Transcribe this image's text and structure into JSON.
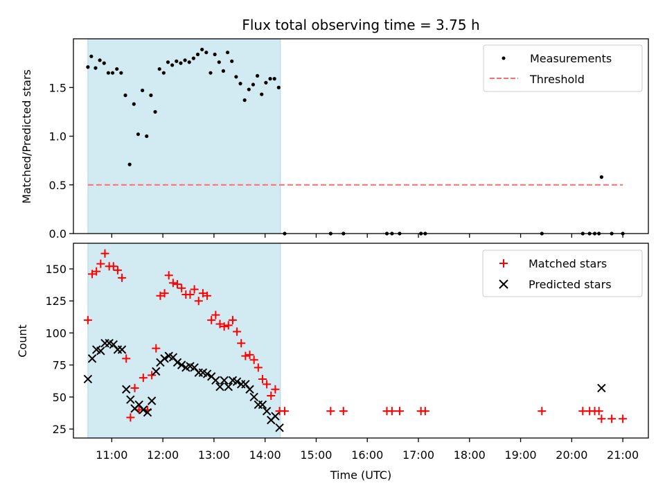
{
  "chart_data": [
    {
      "type": "scatter",
      "title": "Flux total observing time = 3.75 h",
      "xlabel": "",
      "ylabel": "Matched/Predicted stars",
      "xlim": [
        "10:15",
        "21:30"
      ],
      "ylim": [
        0,
        2.0
      ],
      "yticks": [
        0.0,
        0.5,
        1.0,
        1.5
      ],
      "ytick_labels": [
        "0.0",
        "0.5",
        "1.0",
        "1.5"
      ],
      "shaded_region": {
        "x_start": "10:32",
        "x_end": "14:18",
        "color": "#add8e6"
      },
      "legend": {
        "placement": "upper right",
        "entries": [
          "Measurements",
          "Threshold"
        ]
      },
      "threshold": {
        "name": "Threshold",
        "y": 0.5,
        "x_range": [
          "10:32",
          "21:00"
        ],
        "color": "#ff6b6b",
        "style": "dashed"
      },
      "series": [
        {
          "name": "Measurements",
          "marker": "dot",
          "color": "#000000",
          "points": [
            [
              "10:32",
              1.71
            ],
            [
              "10:36",
              1.82
            ],
            [
              "10:41",
              1.7
            ],
            [
              "10:46",
              1.78
            ],
            [
              "10:51",
              1.75
            ],
            [
              "10:56",
              1.65
            ],
            [
              "11:01",
              1.65
            ],
            [
              "11:06",
              1.69
            ],
            [
              "11:11",
              1.65
            ],
            [
              "11:16",
              1.42
            ],
            [
              "11:21",
              0.71
            ],
            [
              "11:26",
              1.33
            ],
            [
              "11:31",
              1.02
            ],
            [
              "11:36",
              1.47
            ],
            [
              "11:41",
              1.0
            ],
            [
              "11:46",
              1.42
            ],
            [
              "11:51",
              1.25
            ],
            [
              "11:56",
              1.69
            ],
            [
              "12:01",
              1.65
            ],
            [
              "12:06",
              1.76
            ],
            [
              "12:11",
              1.73
            ],
            [
              "12:16",
              1.77
            ],
            [
              "12:21",
              1.75
            ],
            [
              "12:26",
              1.78
            ],
            [
              "12:31",
              1.76
            ],
            [
              "12:36",
              1.8
            ],
            [
              "12:41",
              1.84
            ],
            [
              "12:46",
              1.89
            ],
            [
              "12:51",
              1.86
            ],
            [
              "12:56",
              1.65
            ],
            [
              "13:01",
              1.84
            ],
            [
              "13:06",
              1.76
            ],
            [
              "13:11",
              1.67
            ],
            [
              "13:16",
              1.86
            ],
            [
              "13:21",
              1.77
            ],
            [
              "13:26",
              1.61
            ],
            [
              "13:31",
              1.54
            ],
            [
              "13:36",
              1.37
            ],
            [
              "13:41",
              1.48
            ],
            [
              "13:46",
              1.53
            ],
            [
              "13:51",
              1.62
            ],
            [
              "13:56",
              1.43
            ],
            [
              "14:01",
              1.55
            ],
            [
              "14:06",
              1.59
            ],
            [
              "14:11",
              1.59
            ],
            [
              "14:16",
              1.5
            ],
            [
              "14:23",
              0
            ],
            [
              "15:17",
              0
            ],
            [
              "15:32",
              0
            ],
            [
              "16:23",
              0
            ],
            [
              "16:29",
              0
            ],
            [
              "16:38",
              0
            ],
            [
              "17:03",
              0
            ],
            [
              "17:08",
              0
            ],
            [
              "19:25",
              0
            ],
            [
              "20:13",
              0
            ],
            [
              "20:21",
              0
            ],
            [
              "20:27",
              0
            ],
            [
              "20:32",
              0
            ],
            [
              "20:35",
              0.58
            ],
            [
              "20:47",
              0
            ],
            [
              "21:00",
              0
            ]
          ]
        }
      ]
    },
    {
      "type": "scatter",
      "title": "",
      "xlabel": "Time (UTC)",
      "ylabel": "Count",
      "xlim": [
        "10:15",
        "21:30"
      ],
      "ylim": [
        18,
        170
      ],
      "yticks": [
        25,
        50,
        75,
        100,
        125,
        150
      ],
      "ytick_labels": [
        "25",
        "50",
        "75",
        "100",
        "125",
        "150"
      ],
      "xticks": [
        "11:00",
        "12:00",
        "13:00",
        "14:00",
        "15:00",
        "16:00",
        "17:00",
        "18:00",
        "19:00",
        "20:00",
        "21:00"
      ],
      "xtick_labels": [
        "11:00",
        "12:00",
        "13:00",
        "14:00",
        "15:00",
        "16:00",
        "17:00",
        "18:00",
        "19:00",
        "20:00",
        "21:00"
      ],
      "shaded_region": {
        "x_start": "10:32",
        "x_end": "14:18",
        "color": "#add8e6"
      },
      "legend": {
        "placement": "upper right",
        "entries": [
          "Matched stars",
          "Predicted stars"
        ]
      },
      "series": [
        {
          "name": "Matched stars",
          "marker": "plus",
          "color": "#ff0000",
          "points": [
            [
              "10:32",
              110
            ],
            [
              "10:37",
              146
            ],
            [
              "10:42",
              148
            ],
            [
              "10:47",
              154
            ],
            [
              "10:52",
              162
            ],
            [
              "10:57",
              152
            ],
            [
              "11:02",
              152
            ],
            [
              "11:07",
              149
            ],
            [
              "11:12",
              143
            ],
            [
              "11:17",
              80
            ],
            [
              "11:22",
              34
            ],
            [
              "11:27",
              57
            ],
            [
              "11:32",
              40
            ],
            [
              "11:37",
              65
            ],
            [
              "11:42",
              40
            ],
            [
              "11:47",
              67
            ],
            [
              "11:52",
              88
            ],
            [
              "11:57",
              129
            ],
            [
              "12:02",
              131
            ],
            [
              "12:07",
              145
            ],
            [
              "12:12",
              139
            ],
            [
              "12:17",
              138
            ],
            [
              "12:22",
              135
            ],
            [
              "12:27",
              130
            ],
            [
              "12:32",
              130
            ],
            [
              "12:37",
              134
            ],
            [
              "12:42",
              125
            ],
            [
              "12:47",
              131
            ],
            [
              "12:52",
              129
            ],
            [
              "12:57",
              110
            ],
            [
              "13:02",
              114
            ],
            [
              "13:07",
              107
            ],
            [
              "13:12",
              105
            ],
            [
              "13:17",
              106
            ],
            [
              "13:22",
              110
            ],
            [
              "13:27",
              101
            ],
            [
              "13:32",
              92
            ],
            [
              "13:37",
              82
            ],
            [
              "13:42",
              83
            ],
            [
              "13:47",
              79
            ],
            [
              "13:52",
              73
            ],
            [
              "13:57",
              64
            ],
            [
              "14:02",
              60
            ],
            [
              "14:07",
              51
            ],
            [
              "14:12",
              56
            ],
            [
              "14:17",
              39
            ],
            [
              "14:23",
              39
            ],
            [
              "15:17",
              39
            ],
            [
              "15:32",
              39
            ],
            [
              "16:23",
              39
            ],
            [
              "16:29",
              39
            ],
            [
              "16:38",
              39
            ],
            [
              "17:03",
              39
            ],
            [
              "17:08",
              39
            ],
            [
              "19:25",
              39
            ],
            [
              "20:13",
              39
            ],
            [
              "20:21",
              39
            ],
            [
              "20:27",
              39
            ],
            [
              "20:32",
              39
            ],
            [
              "20:35",
              33
            ],
            [
              "20:47",
              33
            ],
            [
              "21:00",
              33
            ]
          ]
        },
        {
          "name": "Predicted stars",
          "marker": "x",
          "color": "#000000",
          "points": [
            [
              "10:32",
              64
            ],
            [
              "10:37",
              80
            ],
            [
              "10:42",
              87
            ],
            [
              "10:47",
              86
            ],
            [
              "10:52",
              92
            ],
            [
              "10:57",
              92
            ],
            [
              "11:02",
              91
            ],
            [
              "11:07",
              87
            ],
            [
              "11:12",
              87
            ],
            [
              "11:17",
              56
            ],
            [
              "11:22",
              48
            ],
            [
              "11:27",
              41
            ],
            [
              "11:32",
              44
            ],
            [
              "11:37",
              40
            ],
            [
              "11:42",
              38
            ],
            [
              "11:47",
              47
            ],
            [
              "11:52",
              70
            ],
            [
              "11:57",
              77
            ],
            [
              "12:02",
              80
            ],
            [
              "12:07",
              82
            ],
            [
              "12:12",
              81
            ],
            [
              "12:17",
              77
            ],
            [
              "12:22",
              75
            ],
            [
              "12:27",
              73
            ],
            [
              "12:32",
              74
            ],
            [
              "12:37",
              73
            ],
            [
              "12:42",
              69
            ],
            [
              "12:47",
              69
            ],
            [
              "12:52",
              68
            ],
            [
              "12:57",
              66
            ],
            [
              "13:02",
              63
            ],
            [
              "13:07",
              58
            ],
            [
              "13:12",
              63
            ],
            [
              "13:17",
              58
            ],
            [
              "13:22",
              63
            ],
            [
              "13:27",
              62
            ],
            [
              "13:32",
              60
            ],
            [
              "13:37",
              60
            ],
            [
              "13:42",
              56
            ],
            [
              "13:47",
              50
            ],
            [
              "13:52",
              44
            ],
            [
              "13:57",
              44
            ],
            [
              "14:02",
              39
            ],
            [
              "14:07",
              32
            ],
            [
              "14:12",
              35
            ],
            [
              "14:17",
              26
            ],
            [
              "20:35",
              57
            ]
          ]
        }
      ]
    }
  ]
}
